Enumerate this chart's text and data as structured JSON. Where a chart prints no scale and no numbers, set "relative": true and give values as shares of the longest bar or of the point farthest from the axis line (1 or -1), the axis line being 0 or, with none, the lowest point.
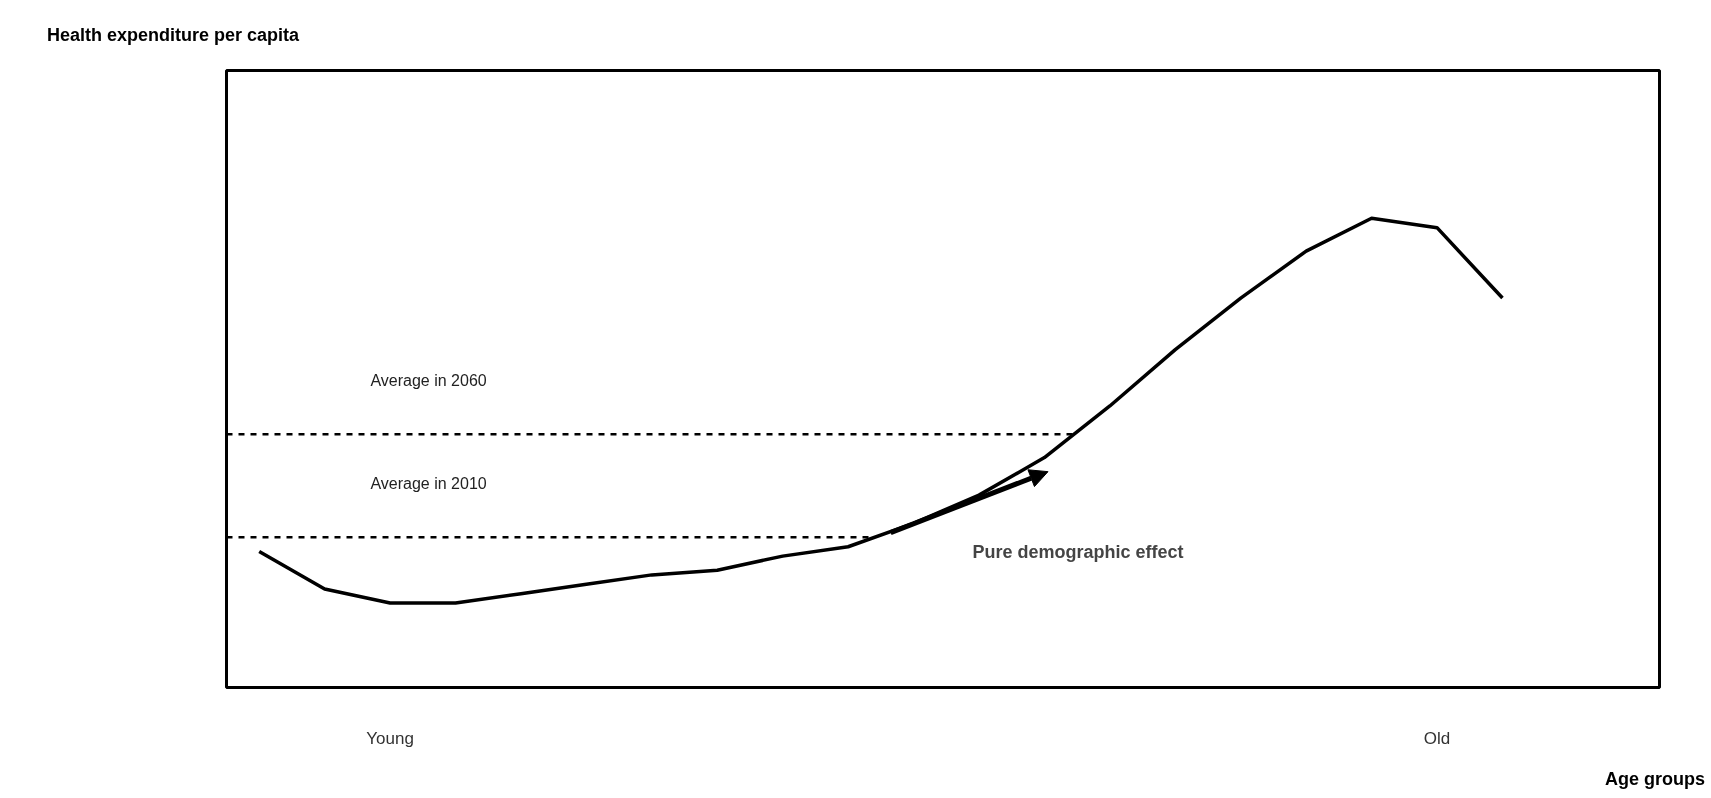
{
  "chart_data": {
    "type": "line",
    "relative": true,
    "title": "Health expenditure per capita",
    "xlabel": "Age groups",
    "categories": [
      null,
      null,
      "Young",
      null,
      null,
      null,
      null,
      null,
      null,
      null,
      null,
      null,
      null,
      null,
      null,
      null,
      null,
      null,
      "Old",
      null
    ],
    "series": [
      {
        "color": "#000000",
        "values": [
          0.29,
          0.21,
          0.18,
          0.18,
          0.2,
          0.22,
          0.24,
          0.25,
          0.28,
          0.3,
          0.35,
          0.41,
          0.49,
          0.6,
          0.72,
          0.83,
          0.93,
          1,
          0.98,
          0.83
        ]
      }
    ],
    "ref_lines": [
      {
        "axis": "y",
        "value": 0.54,
        "label": "Average in 2060",
        "color": "#000000",
        "line_style": "dashed"
      },
      {
        "axis": "y",
        "value": 0.32,
        "label": "Average in 2010",
        "color": "#000000",
        "line_style": "dashed"
      }
    ],
    "annotations": [
      "Pure demographic effect"
    ],
    "tick_labels": "x",
    "grid": false,
    "line_style": "solid",
    "marker": "none"
  }
}
